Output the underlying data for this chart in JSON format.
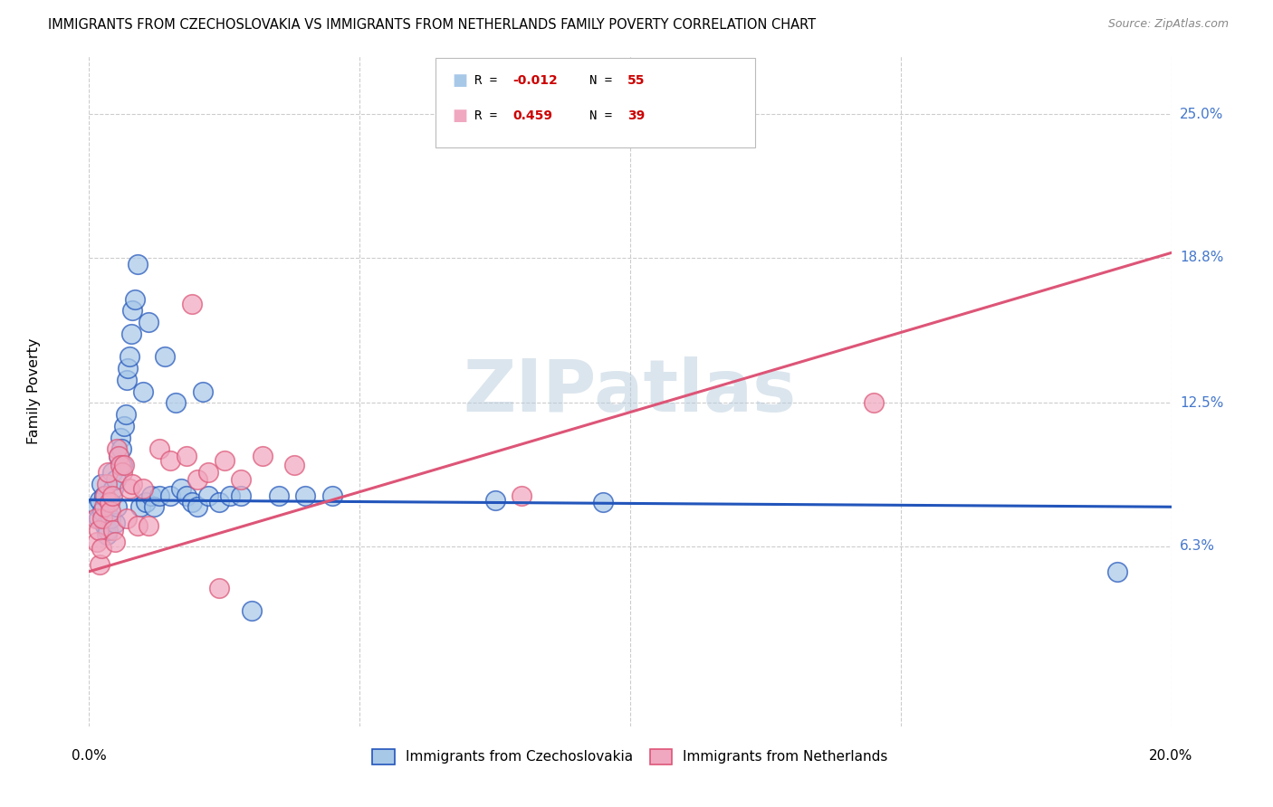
{
  "title": "IMMIGRANTS FROM CZECHOSLOVAKIA VS IMMIGRANTS FROM NETHERLANDS FAMILY POVERTY CORRELATION CHART",
  "source": "Source: ZipAtlas.com",
  "ylabel": "Family Poverty",
  "ytick_labels": [
    "6.3%",
    "12.5%",
    "18.8%",
    "25.0%"
  ],
  "ytick_values": [
    6.3,
    12.5,
    18.8,
    25.0
  ],
  "xlim": [
    0.0,
    20.0
  ],
  "ylim": [
    -1.5,
    27.5
  ],
  "color_blue": "#a8c8e8",
  "color_pink": "#f0a8c0",
  "line_blue": "#2255bb",
  "line_pink": "#dd5577",
  "watermark": "ZIPatlas",
  "label_blue": "Immigrants from Czechoslovakia",
  "label_pink": "Immigrants from Netherlands",
  "legend_r1_prefix": "R = ",
  "legend_r1_val": "-0.012",
  "legend_n1_prefix": "N = ",
  "legend_n1_val": "55",
  "legend_r2_prefix": "R =  ",
  "legend_r2_val": "0.459",
  "legend_n2_prefix": "N = ",
  "legend_n2_val": "39",
  "blue_line_y0": 8.3,
  "blue_line_y1": 8.0,
  "pink_line_y0": 5.2,
  "pink_line_y1": 19.0,
  "blue_x": [
    0.15,
    0.18,
    0.2,
    0.22,
    0.25,
    0.28,
    0.3,
    0.32,
    0.35,
    0.38,
    0.4,
    0.42,
    0.45,
    0.48,
    0.5,
    0.52,
    0.55,
    0.58,
    0.6,
    0.62,
    0.65,
    0.68,
    0.7,
    0.72,
    0.75,
    0.78,
    0.8,
    0.85,
    0.9,
    0.95,
    1.0,
    1.05,
    1.1,
    1.15,
    1.2,
    1.3,
    1.4,
    1.5,
    1.6,
    1.7,
    1.8,
    1.9,
    2.0,
    2.1,
    2.2,
    2.4,
    2.6,
    2.8,
    3.0,
    3.5,
    4.0,
    4.5,
    19.0,
    9.5,
    7.5
  ],
  "blue_y": [
    8.0,
    7.5,
    8.3,
    9.0,
    7.8,
    8.5,
    7.2,
    6.8,
    7.0,
    8.2,
    7.5,
    9.5,
    8.8,
    7.3,
    9.2,
    8.0,
    10.2,
    11.0,
    10.5,
    9.8,
    11.5,
    12.0,
    13.5,
    14.0,
    14.5,
    15.5,
    16.5,
    17.0,
    18.5,
    8.0,
    13.0,
    8.2,
    16.0,
    8.5,
    8.0,
    8.5,
    14.5,
    8.5,
    12.5,
    8.8,
    8.5,
    8.2,
    8.0,
    13.0,
    8.5,
    8.2,
    8.5,
    8.5,
    3.5,
    8.5,
    8.5,
    8.5,
    5.2,
    8.2,
    8.3
  ],
  "pink_x": [
    0.12,
    0.15,
    0.18,
    0.2,
    0.22,
    0.25,
    0.28,
    0.3,
    0.32,
    0.35,
    0.38,
    0.4,
    0.42,
    0.45,
    0.48,
    0.52,
    0.55,
    0.58,
    0.62,
    0.65,
    0.7,
    0.75,
    0.8,
    0.9,
    1.0,
    1.1,
    1.3,
    1.5,
    1.8,
    2.0,
    2.2,
    2.5,
    2.8,
    3.2,
    3.8,
    14.5,
    8.0,
    2.4,
    1.9
  ],
  "pink_y": [
    7.5,
    6.5,
    7.0,
    5.5,
    6.2,
    7.5,
    8.0,
    8.5,
    9.0,
    9.5,
    8.2,
    7.8,
    8.5,
    7.0,
    6.5,
    10.5,
    10.2,
    9.8,
    9.5,
    9.8,
    7.5,
    8.8,
    9.0,
    7.2,
    8.8,
    7.2,
    10.5,
    10.0,
    10.2,
    9.2,
    9.5,
    10.0,
    9.2,
    10.2,
    9.8,
    12.5,
    8.5,
    4.5,
    16.8
  ]
}
